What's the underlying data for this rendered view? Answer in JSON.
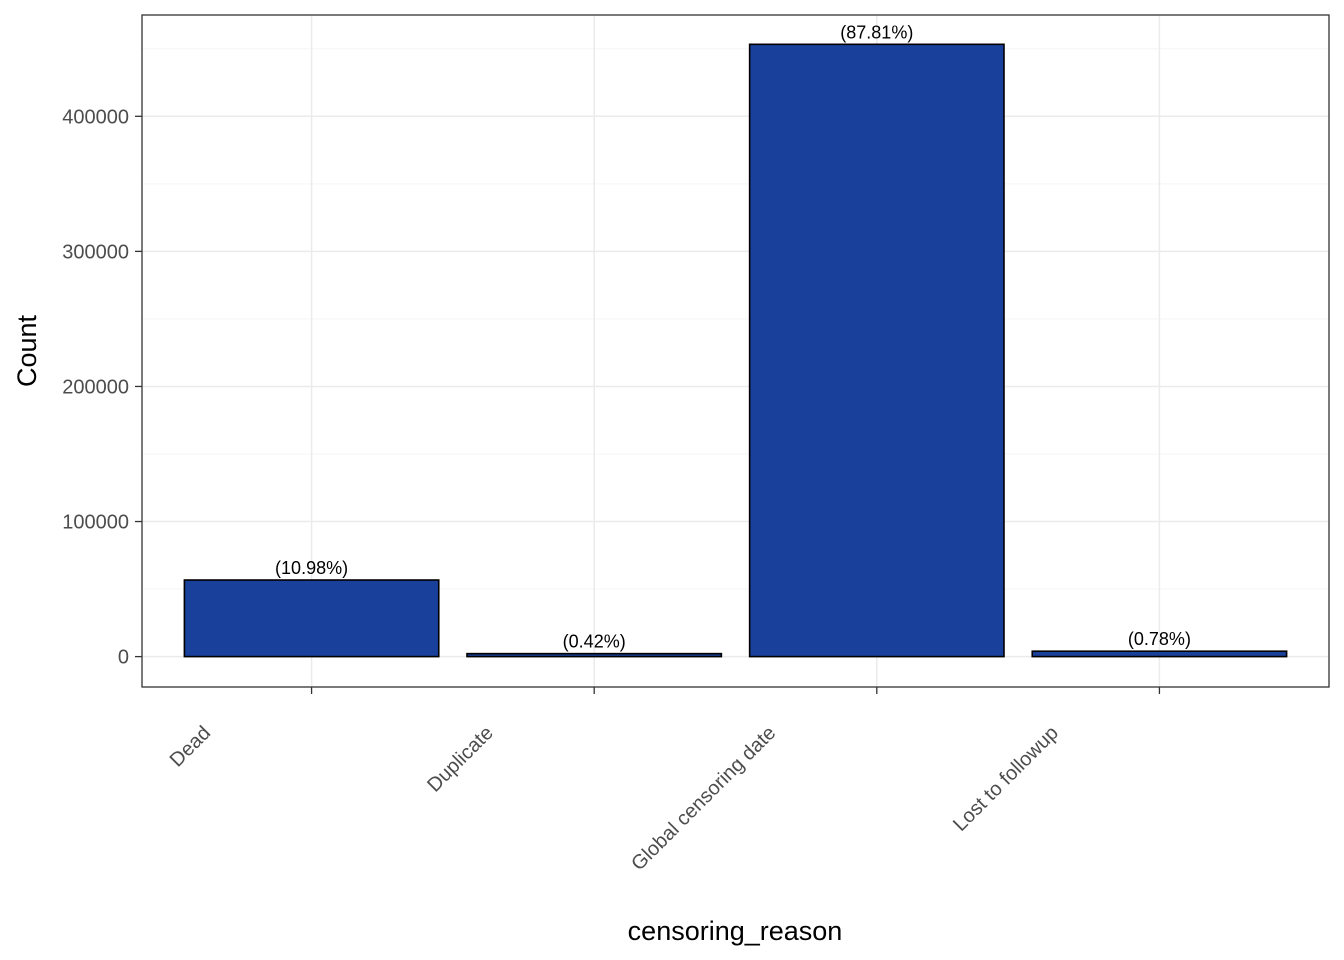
{
  "chart_data": {
    "type": "bar",
    "categories": [
      "Dead",
      "Duplicate",
      "Global censoring date",
      "Lost to followup"
    ],
    "values": [
      56700,
      2200,
      453300,
      4000
    ],
    "labels": [
      "(10.98%)",
      "(0.42%)",
      "(87.81%)",
      "(0.78%)"
    ],
    "xlabel": "censoring_reason",
    "ylabel": "Count",
    "ylim": [
      -22500,
      475000
    ],
    "yticks": [
      0,
      100000,
      200000,
      300000,
      400000
    ],
    "ytick_labels": [
      "0",
      "100000",
      "200000",
      "300000",
      "400000"
    ],
    "grid": true,
    "colors": {
      "bar_fill": "#19419B",
      "bar_outline": "#000000",
      "grid_major": "#EBEBEB",
      "grid_minor": "#F5F5F5",
      "panel_border": "#333333"
    }
  }
}
